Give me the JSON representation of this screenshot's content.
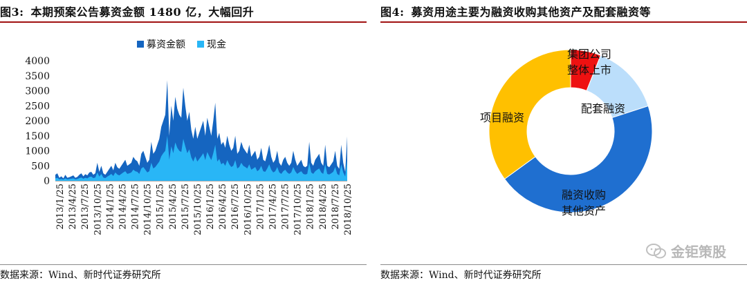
{
  "left": {
    "figure_no": "图3:",
    "title": "本期预案公告募资金额 1480 亿，大幅回升",
    "source": "数据来源：Wind、新时代证券研究所"
  },
  "right": {
    "figure_no": "图4:",
    "title": "募资用途主要为融资收购其他资产及配套融资等",
    "source": "数据来源：Wind、新时代证券研究所"
  },
  "watermark": "金钜策股",
  "colors": {
    "dark_blue": "#1565c0",
    "light_blue": "#29b6f6",
    "red": "#ee1111",
    "pale_blue": "#bbdefb",
    "deep_blue": "#1f6fd0",
    "orange": "#ffc000"
  },
  "chart_data": [
    {
      "type": "area",
      "legend_position": "top",
      "ylim": [
        0,
        4000
      ],
      "yticks": [
        0,
        500,
        1000,
        1500,
        2000,
        2500,
        3000,
        3500,
        4000
      ],
      "x_tick_labels": [
        "2013/1/25",
        "2013/4/25",
        "2013/7/25",
        "2013/10/25",
        "2014/1/25",
        "2014/4/25",
        "2014/7/25",
        "2014/10/25",
        "2015/1/25",
        "2015/4/25",
        "2015/7/25",
        "2015/10/25",
        "2016/1/25",
        "2016/4/25",
        "2016/7/25",
        "2016/10/25",
        "2017/1/25",
        "2017/4/25",
        "2017/7/25",
        "2017/10/25",
        "2018/1/25",
        "2018/4/25",
        "2018/7/25",
        "2018/10/25"
      ],
      "series": [
        {
          "name": "募资金额",
          "color": "#1565c0",
          "values": [
            200,
            250,
            100,
            150,
            80,
            200,
            100,
            120,
            150,
            180,
            100,
            130,
            200,
            250,
            150,
            220,
            180,
            280,
            300,
            200,
            250,
            600,
            300,
            500,
            250,
            200,
            300,
            400,
            500,
            350,
            600,
            450,
            400,
            500,
            600,
            700,
            500,
            550,
            600,
            800,
            700,
            650,
            500,
            900,
            1000,
            800,
            600,
            700,
            1300,
            900,
            1000,
            1200,
            1400,
            1800,
            2000,
            2200,
            3350,
            1500,
            2500,
            2000,
            2800,
            2400,
            2200,
            2100,
            3100,
            2500,
            2000,
            2300,
            1700,
            1400,
            1800,
            1400,
            1600,
            1800,
            2000,
            1500,
            2100,
            1800,
            1500,
            2000,
            2600,
            1400,
            1600,
            1200,
            1300,
            1100,
            1500,
            1200,
            1000,
            1100,
            1500,
            900,
            1000,
            1300,
            1100,
            1000,
            900,
            1200,
            800,
            900,
            1000,
            700,
            800,
            1100,
            700,
            650,
            900,
            1200,
            800,
            600,
            700,
            1000,
            600,
            500,
            700,
            800,
            600,
            500,
            600,
            1000,
            700,
            500,
            600,
            700,
            500,
            450,
            500,
            1300,
            600,
            500,
            700,
            800,
            900,
            600,
            500,
            1200,
            500,
            450,
            550,
            650,
            1000,
            500,
            400,
            1200,
            600,
            300,
            1480
          ]
        },
        {
          "name": "现金",
          "color": "#29b6f6",
          "values": [
            80,
            100,
            50,
            60,
            40,
            80,
            50,
            60,
            70,
            80,
            50,
            60,
            90,
            110,
            70,
            100,
            80,
            130,
            140,
            90,
            110,
            280,
            140,
            230,
            110,
            90,
            140,
            180,
            230,
            160,
            280,
            210,
            180,
            230,
            280,
            320,
            230,
            250,
            280,
            370,
            320,
            300,
            230,
            410,
            460,
            370,
            280,
            320,
            600,
            410,
            460,
            550,
            640,
            820,
            920,
            1000,
            1500,
            700,
            1150,
            920,
            1280,
            1100,
            1000,
            960,
            1400,
            1150,
            920,
            1050,
            780,
            640,
            820,
            640,
            730,
            820,
            920,
            690,
            960,
            820,
            690,
            920,
            1200,
            640,
            730,
            550,
            600,
            500,
            690,
            550,
            460,
            500,
            690,
            410,
            460,
            600,
            500,
            460,
            410,
            550,
            370,
            410,
            460,
            320,
            370,
            500,
            320,
            300,
            410,
            550,
            370,
            280,
            320,
            460,
            280,
            230,
            320,
            370,
            280,
            230,
            280,
            460,
            320,
            230,
            280,
            320,
            230,
            210,
            230,
            600,
            280,
            230,
            320,
            370,
            410,
            280,
            230,
            550,
            230,
            210,
            250,
            300,
            460,
            230,
            180,
            550,
            280,
            140,
            680
          ]
        }
      ]
    },
    {
      "type": "pie",
      "donut": true,
      "slices": [
        {
          "label": "集团公司整体上市",
          "value": 6,
          "color": "#ee1111"
        },
        {
          "label": "配套融资",
          "value": 14,
          "color": "#bbdefb"
        },
        {
          "label": "融资收购其他资产",
          "value": 45,
          "color": "#1f6fd0"
        },
        {
          "label": "项目融资",
          "value": 35,
          "color": "#ffc000"
        }
      ]
    }
  ]
}
